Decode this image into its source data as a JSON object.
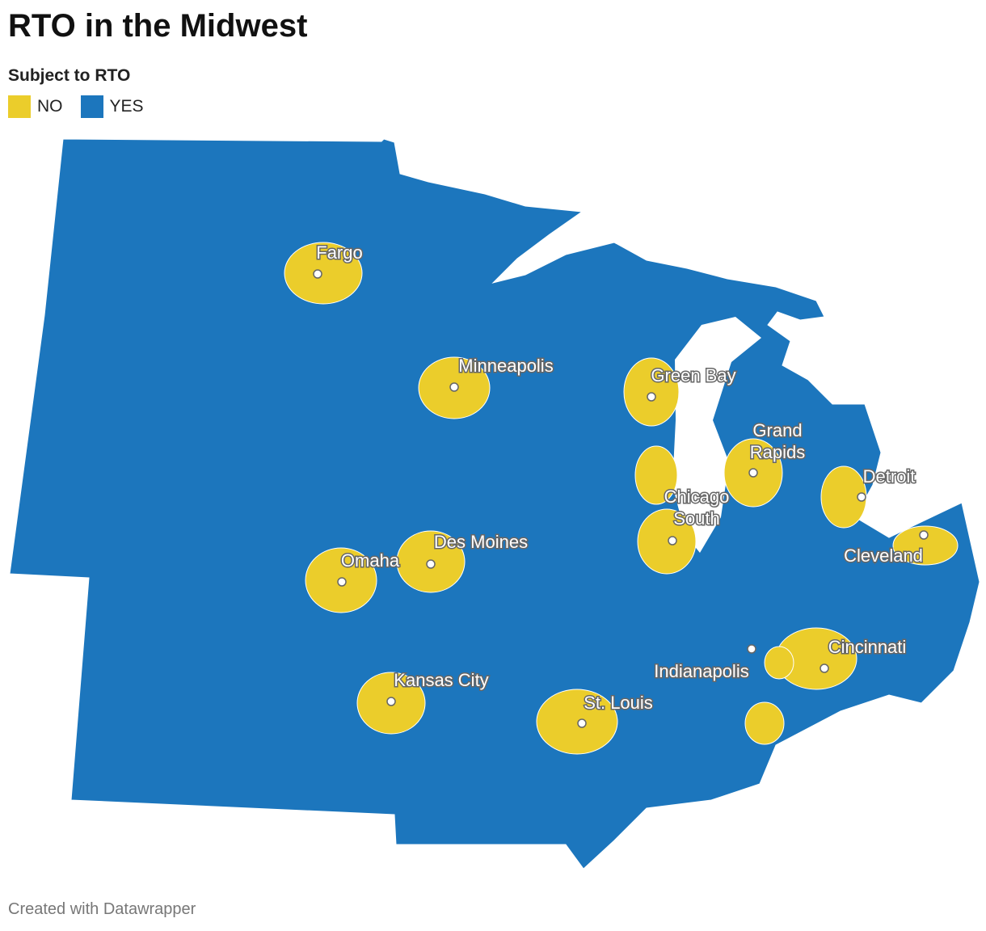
{
  "title": "RTO in the Midwest",
  "legend": {
    "title": "Subject to RTO",
    "items": [
      {
        "label": "NO",
        "color": "#ebcd2b"
      },
      {
        "label": "YES",
        "color": "#1c76bd"
      }
    ]
  },
  "cities": [
    {
      "label": [
        "Fargo"
      ]
    },
    {
      "label": [
        "Minneapolis"
      ]
    },
    {
      "label": [
        "Green Bay"
      ]
    },
    {
      "label": [
        "Grand",
        "Rapids"
      ]
    },
    {
      "label": [
        "Detroit"
      ]
    },
    {
      "label": [
        "Chicago",
        "South"
      ]
    },
    {
      "label": [
        "Cleveland"
      ]
    },
    {
      "label": [
        "Des Moines"
      ]
    },
    {
      "label": [
        "Omaha"
      ]
    },
    {
      "label": [
        "Kansas City"
      ]
    },
    {
      "label": [
        "St. Louis"
      ]
    },
    {
      "label": [
        "Indianapolis"
      ]
    },
    {
      "label": [
        "Cincinnati"
      ]
    }
  ],
  "footer": "Created with Datawrapper"
}
